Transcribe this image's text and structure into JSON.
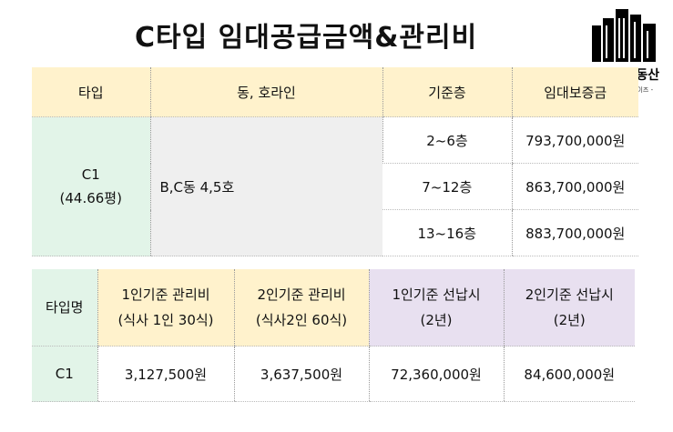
{
  "title": "C타입  임대공급금액&관리비",
  "logo": {
    "name": "디웨브부동산",
    "sub": "- 부동산 프랜차이즈 -"
  },
  "supply_table": {
    "headers": [
      "타입",
      "동, 호라인",
      "기준층",
      "임대보증금"
    ],
    "type_line1": "C1",
    "type_line2": "(44.66평)",
    "unit": "B,C동  4,5호",
    "rows": [
      {
        "floor": "2~6층",
        "deposit": "793,700,000원"
      },
      {
        "floor": "7~12층",
        "deposit": "863,700,000원"
      },
      {
        "floor": "13~16층",
        "deposit": "883,700,000원"
      }
    ]
  },
  "fee_table": {
    "headers": [
      {
        "line1": "타입명",
        "line2": ""
      },
      {
        "line1": "1인기준  관리비",
        "line2": "(식사  1인  30식)"
      },
      {
        "line1": "2인기준  관리비",
        "line2": "(식사2인  60식)"
      },
      {
        "line1": "1인기준  선납시",
        "line2": "(2년)"
      },
      {
        "line1": "2인기준  선납시",
        "line2": "(2년)"
      }
    ],
    "row": [
      "C1",
      "3,127,500원",
      "3,637,500원",
      "72,360,000원",
      "84,600,000원"
    ]
  },
  "colors": {
    "header_yellow": "#fff2cc",
    "type_green": "#e2f4e8",
    "unit_gray": "#efefef",
    "prepay_purple": "#e8e0f0"
  }
}
